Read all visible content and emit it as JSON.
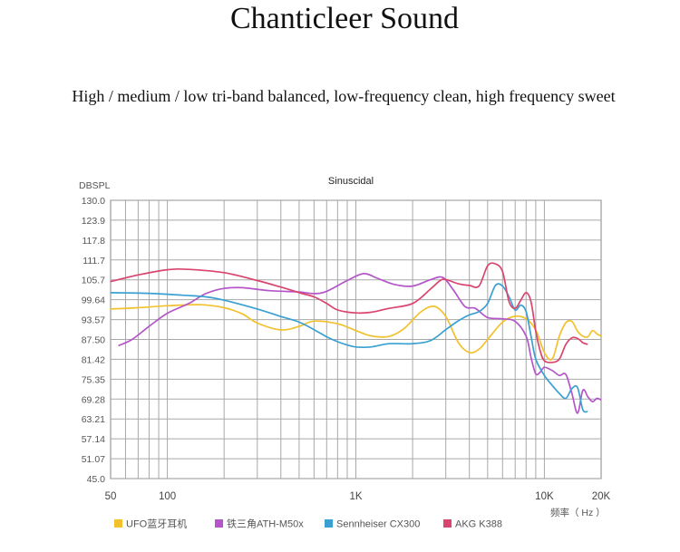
{
  "page": {
    "title": "Chanticleer Sound",
    "subtitle": "High / medium / low tri-band balanced, low-frequency clean, high frequency sweet"
  },
  "chart_data": {
    "type": "line",
    "title": "Sinuscidal",
    "ylabel": "DBSPL",
    "xlabel": "频率（ Hz ）",
    "xscale": "log",
    "xlim": [
      50,
      20000
    ],
    "ylim": [
      45.0,
      130.0
    ],
    "y_ticks": [
      "130.0",
      "123.9",
      "117.8",
      "111.7",
      "105.7",
      "99.64",
      "93.57",
      "87.50",
      "81.42",
      "75.35",
      "69.28",
      "63.21",
      "57.14",
      "51.07",
      "45.0"
    ],
    "x_ticks": [
      {
        "value": 50,
        "label": "50"
      },
      {
        "value": 100,
        "label": "100"
      },
      {
        "value": 1000,
        "label": "1K"
      },
      {
        "value": 10000,
        "label": "10K"
      },
      {
        "value": 20000,
        "label": "20K"
      }
    ],
    "grid": true,
    "legend": "bottom",
    "series": [
      {
        "name": "UFO蓝牙耳机",
        "color": "#f2c12e",
        "points": [
          [
            50,
            96.8
          ],
          [
            70,
            97.2
          ],
          [
            100,
            97.8
          ],
          [
            150,
            98.1
          ],
          [
            200,
            97.2
          ],
          [
            250,
            95.3
          ],
          [
            300,
            92.5
          ],
          [
            400,
            90.4
          ],
          [
            500,
            91.5
          ],
          [
            600,
            93.1
          ],
          [
            800,
            92.3
          ],
          [
            1000,
            90.2
          ],
          [
            1200,
            88.6
          ],
          [
            1500,
            88.4
          ],
          [
            1800,
            90.8
          ],
          [
            2200,
            95.8
          ],
          [
            2600,
            97.6
          ],
          [
            3000,
            94.5
          ],
          [
            3500,
            86.5
          ],
          [
            4000,
            83.5
          ],
          [
            4500,
            84.5
          ],
          [
            5000,
            87.5
          ],
          [
            6000,
            92.8
          ],
          [
            7000,
            94.6
          ],
          [
            8000,
            93.8
          ],
          [
            9000,
            90.4
          ],
          [
            10000,
            83.5
          ],
          [
            11000,
            81.5
          ],
          [
            12000,
            88.5
          ],
          [
            13000,
            92.6
          ],
          [
            14000,
            93.0
          ],
          [
            15000,
            90.0
          ],
          [
            16000,
            88.5
          ],
          [
            17000,
            88.3
          ],
          [
            18000,
            90.2
          ],
          [
            19000,
            89.2
          ],
          [
            20000,
            88.5
          ]
        ]
      },
      {
        "name": "铁三角ATH-M50x",
        "color": "#b455c9",
        "points": [
          [
            55,
            85.6
          ],
          [
            65,
            87.5
          ],
          [
            80,
            91.5
          ],
          [
            100,
            95.5
          ],
          [
            130,
            98.5
          ],
          [
            160,
            101.5
          ],
          [
            200,
            103.1
          ],
          [
            250,
            103.3
          ],
          [
            350,
            102.4
          ],
          [
            500,
            102.0
          ],
          [
            600,
            101.5
          ],
          [
            700,
            102.2
          ],
          [
            900,
            105.5
          ],
          [
            1100,
            107.6
          ],
          [
            1300,
            106.2
          ],
          [
            1600,
            104.3
          ],
          [
            2000,
            103.8
          ],
          [
            2500,
            105.8
          ],
          [
            2900,
            106.4
          ],
          [
            3300,
            102.5
          ],
          [
            3800,
            97.5
          ],
          [
            4300,
            97.0
          ],
          [
            5000,
            94.2
          ],
          [
            6000,
            93.8
          ],
          [
            7000,
            93.0
          ],
          [
            8000,
            88.5
          ],
          [
            8500,
            82.0
          ],
          [
            9000,
            77.0
          ],
          [
            9500,
            77.5
          ],
          [
            10000,
            79.0
          ],
          [
            11000,
            78.0
          ],
          [
            12000,
            76.5
          ],
          [
            13000,
            76.8
          ],
          [
            14000,
            71.0
          ],
          [
            15000,
            65.0
          ],
          [
            16000,
            72.0
          ],
          [
            17000,
            70.0
          ],
          [
            18000,
            68.5
          ],
          [
            19000,
            69.5
          ],
          [
            20000,
            69.0
          ]
        ]
      },
      {
        "name": "Sennheiser CX300",
        "color": "#3aa0d2",
        "points": [
          [
            50,
            101.8
          ],
          [
            80,
            101.6
          ],
          [
            120,
            101.0
          ],
          [
            160,
            100.5
          ],
          [
            200,
            99.5
          ],
          [
            300,
            96.8
          ],
          [
            400,
            94.5
          ],
          [
            500,
            92.8
          ],
          [
            600,
            90.5
          ],
          [
            700,
            88.3
          ],
          [
            800,
            86.8
          ],
          [
            900,
            85.8
          ],
          [
            1000,
            85.2
          ],
          [
            1200,
            85.2
          ],
          [
            1500,
            86.2
          ],
          [
            2000,
            86.2
          ],
          [
            2500,
            87.2
          ],
          [
            3000,
            90.5
          ],
          [
            3500,
            93.2
          ],
          [
            4000,
            95.0
          ],
          [
            4500,
            96.0
          ],
          [
            5000,
            98.5
          ],
          [
            5500,
            104.0
          ],
          [
            6000,
            103.8
          ],
          [
            6500,
            100.5
          ],
          [
            7000,
            96.5
          ],
          [
            7500,
            98.0
          ],
          [
            8000,
            96.0
          ],
          [
            8500,
            88.5
          ],
          [
            9000,
            81.5
          ],
          [
            10000,
            76.5
          ],
          [
            11000,
            73.5
          ],
          [
            12000,
            71.0
          ],
          [
            13000,
            69.5
          ],
          [
            14000,
            72.5
          ],
          [
            15000,
            72.8
          ],
          [
            16000,
            66.0
          ],
          [
            17000,
            65.5
          ]
        ]
      },
      {
        "name": "AKG K388",
        "color": "#d9456e",
        "points": [
          [
            50,
            105.2
          ],
          [
            70,
            107.2
          ],
          [
            100,
            108.8
          ],
          [
            130,
            108.9
          ],
          [
            200,
            107.9
          ],
          [
            300,
            105.5
          ],
          [
            400,
            103.5
          ],
          [
            500,
            101.8
          ],
          [
            600,
            100.5
          ],
          [
            700,
            98.5
          ],
          [
            800,
            96.5
          ],
          [
            1000,
            95.6
          ],
          [
            1200,
            95.8
          ],
          [
            1500,
            97.0
          ],
          [
            2000,
            98.5
          ],
          [
            2500,
            103.0
          ],
          [
            2800,
            105.5
          ],
          [
            3000,
            105.8
          ],
          [
            3500,
            104.5
          ],
          [
            4000,
            104.0
          ],
          [
            4500,
            103.8
          ],
          [
            5000,
            110.0
          ],
          [
            5500,
            110.6
          ],
          [
            6000,
            108.2
          ],
          [
            6500,
            99.0
          ],
          [
            7000,
            97.0
          ],
          [
            7500,
            99.5
          ],
          [
            8000,
            101.8
          ],
          [
            8500,
            99.0
          ],
          [
            9000,
            90.0
          ],
          [
            9500,
            84.0
          ],
          [
            10000,
            81.0
          ],
          [
            11000,
            80.5
          ],
          [
            12000,
            81.5
          ],
          [
            13000,
            86.0
          ],
          [
            14000,
            88.0
          ],
          [
            15000,
            87.8
          ],
          [
            16000,
            86.5
          ],
          [
            17000,
            86.0
          ]
        ]
      }
    ]
  }
}
